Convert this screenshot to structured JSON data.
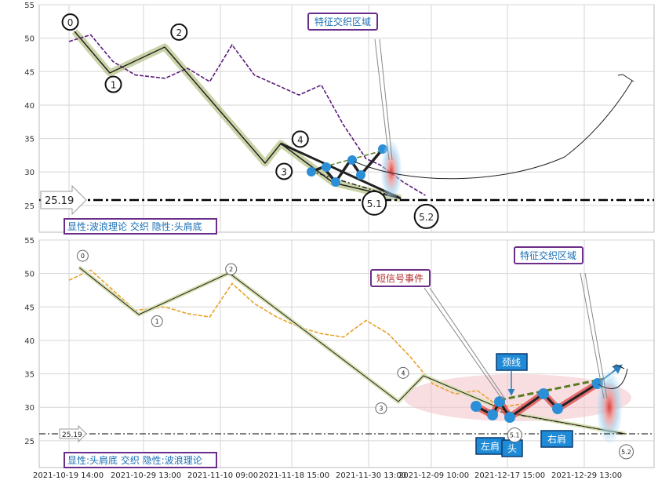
{
  "chart_data": [
    {
      "type": "line",
      "panel": "top",
      "ylim": [
        21,
        55
      ],
      "y_ticks": [
        "25",
        "30",
        "35",
        "40",
        "45",
        "50",
        "55"
      ],
      "price_color": "#5b1a7a",
      "price_x": [
        "2021-10-19 14:00",
        "2021-10-22",
        "2021-10-25",
        "2021-10-28",
        "2021-11-01",
        "2021-11-04",
        "2021-11-07",
        "2021-11-10",
        "2021-11-13",
        "2021-11-16",
        "2021-11-19",
        "2021-11-22",
        "2021-11-25",
        "2021-11-28",
        "2021-11-30",
        "2021-12-03",
        "2021-12-06"
      ],
      "price_y": [
        49.5,
        50.5,
        46.5,
        44.5,
        44.0,
        45.5,
        43.5,
        49.0,
        44.5,
        43.0,
        41.5,
        43.0,
        37.0,
        32.0,
        31.0,
        28.5,
        26.5
      ],
      "wave_points": [
        {
          "label": "0",
          "x": "2021-10-19 18:00",
          "y": 51.0
        },
        {
          "label": "1",
          "x": "2021-10-25 13:00",
          "y": 44.5
        },
        {
          "label": "2",
          "x": "2021-11-03 09:00",
          "y": 49.5
        },
        {
          "label": "3",
          "x": "2021-11-17 12:00",
          "y": 31.5
        },
        {
          "label": "4",
          "x": "2021-11-19 16:00",
          "y": 33.5
        },
        {
          "label": "5.1",
          "x": "2021-11-29 15:00",
          "y": 27.0
        },
        {
          "label": "5.2",
          "x": "2021-12-06 15:00",
          "y": 25.0
        }
      ],
      "support_level": "25.19",
      "annotation": "特征交织区域",
      "legend": "显性:波浪理论 交织 隐性:头肩底"
    },
    {
      "type": "line",
      "panel": "bottom",
      "ylim": [
        21,
        55
      ],
      "y_ticks": [
        "25",
        "30",
        "35",
        "40",
        "45",
        "50",
        "55"
      ],
      "price_color": "#e8a22a",
      "x_ticks": [
        "2021-10-19 14:00",
        "2021-10-29 13:00",
        "2021-11-10 09:00",
        "2021-11-18 15:00",
        "2021-11-30 13:00",
        "2021-12-09 10:00",
        "2021-12-17 15:00",
        "2021-12-29 13:00"
      ],
      "price_x": [
        "2021-10-19 14:00",
        "2021-10-22",
        "2021-10-25",
        "2021-10-28",
        "2021-11-01",
        "2021-11-04",
        "2021-11-07",
        "2021-11-10",
        "2021-11-13",
        "2021-11-16",
        "2021-11-19",
        "2021-11-22",
        "2021-11-25",
        "2021-11-28",
        "2021-12-01",
        "2021-12-04",
        "2021-12-07",
        "2021-12-10",
        "2021-12-13",
        "2021-12-16",
        "2021-12-19"
      ],
      "price_y": [
        49.0,
        50.5,
        47.5,
        44.5,
        45.0,
        44.0,
        43.5,
        48.5,
        45.5,
        43.5,
        42.0,
        41.0,
        40.5,
        43.0,
        41.0,
        37.5,
        33.5,
        32.0,
        32.5,
        30.0,
        30.5
      ],
      "wave_points": [
        {
          "label": "0",
          "x": "2021-10-21 10:00",
          "y": 51.0
        },
        {
          "label": "1",
          "x": "2021-10-31 10:00",
          "y": 44.5
        },
        {
          "label": "2",
          "x": "2021-11-10 09:00",
          "y": 49.0
        },
        {
          "label": "3",
          "x": "2021-11-30 13:00",
          "y": 31.5
        },
        {
          "label": "4",
          "x": "2021-12-03 12:00",
          "y": 33.5
        },
        {
          "label": "5.1",
          "x": "2021-12-18 12:00",
          "y": 27.5
        },
        {
          "label": "5.2",
          "x": "2022-01-02 12:00",
          "y": 25.0
        }
      ],
      "support_level": "25.19",
      "annotations": {
        "short_signal": "短信号事件",
        "interweave": "特征交织区域",
        "neckline": "颈线",
        "left_shoulder": "左肩",
        "head": "头",
        "right_shoulder": "右肩"
      },
      "legend": "显性:头肩底 交织 隐性:波浪理论"
    }
  ]
}
